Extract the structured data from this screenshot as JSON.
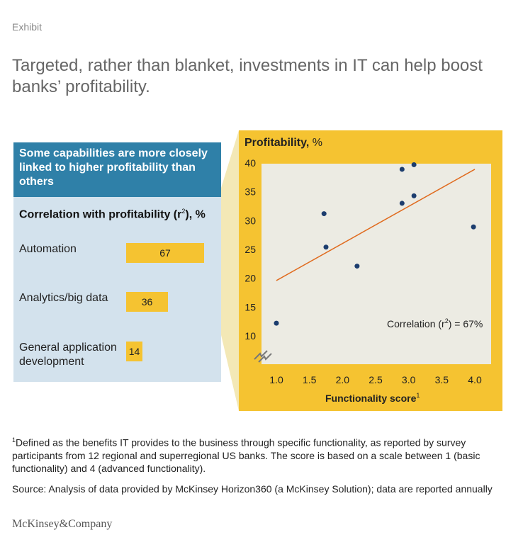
{
  "exhibit_label": "Exhibit",
  "headline": "Targeted, rather than blanket, investments in IT can help boost banks’ profitability.",
  "left_panel": {
    "header": "Some capabilities are more closely linked to higher profitability than others",
    "corr_label_prefix": "Correlation with profitability (r",
    "corr_label_sup": "2",
    "corr_label_suffix": "), %",
    "capabilities": [
      {
        "name": "Automation",
        "value": 67
      },
      {
        "name": "Analytics/big data",
        "value": 36
      },
      {
        "name": "General application development",
        "value": 14
      }
    ]
  },
  "chart_data": {
    "type": "scatter",
    "ylabel_main": "Profitability,",
    "ylabel_unit": "%",
    "xlabel": "Functionality score",
    "xlabel_sup": "1",
    "xlim": [
      1.0,
      4.0
    ],
    "ylim": [
      10,
      40
    ],
    "x_ticks": [
      "1.0",
      "1.5",
      "2.0",
      "2.5",
      "3.0",
      "3.5",
      "4.0"
    ],
    "y_ticks": [
      "10",
      "15",
      "20",
      "25",
      "30",
      "35",
      "40"
    ],
    "points": [
      {
        "x": 1.0,
        "y": 12.2
      },
      {
        "x": 1.72,
        "y": 31.2
      },
      {
        "x": 1.75,
        "y": 25.4
      },
      {
        "x": 2.22,
        "y": 22.1
      },
      {
        "x": 2.9,
        "y": 38.9
      },
      {
        "x": 2.9,
        "y": 33.0
      },
      {
        "x": 3.08,
        "y": 39.7
      },
      {
        "x": 3.08,
        "y": 34.3
      },
      {
        "x": 3.98,
        "y": 28.9
      }
    ],
    "trendline": [
      {
        "x": 1.0,
        "y": 19.6
      },
      {
        "x": 4.0,
        "y": 38.9
      }
    ],
    "correlation_prefix": "Correlation (r",
    "correlation_sup": "2",
    "correlation_suffix": ") = 67%",
    "colors": {
      "panel": "#f5c331",
      "plot_bg": "#ecebe3",
      "point": "#1c3d6e",
      "trend": "#e06b1f",
      "connector": "#f3e8b6"
    }
  },
  "footnote": {
    "marker": "1",
    "text": "Defined as the benefits IT provides to the business through specific functionality, as reported by survey participants from 12 regional and superregional US banks. The score is based on a scale between 1 (basic functionality) and 4 (advanced functionality)."
  },
  "source": "Source: Analysis of data provided by McKinsey Horizon360 (a McKinsey Solution); data are reported annually",
  "logo": "McKinsey&Company"
}
